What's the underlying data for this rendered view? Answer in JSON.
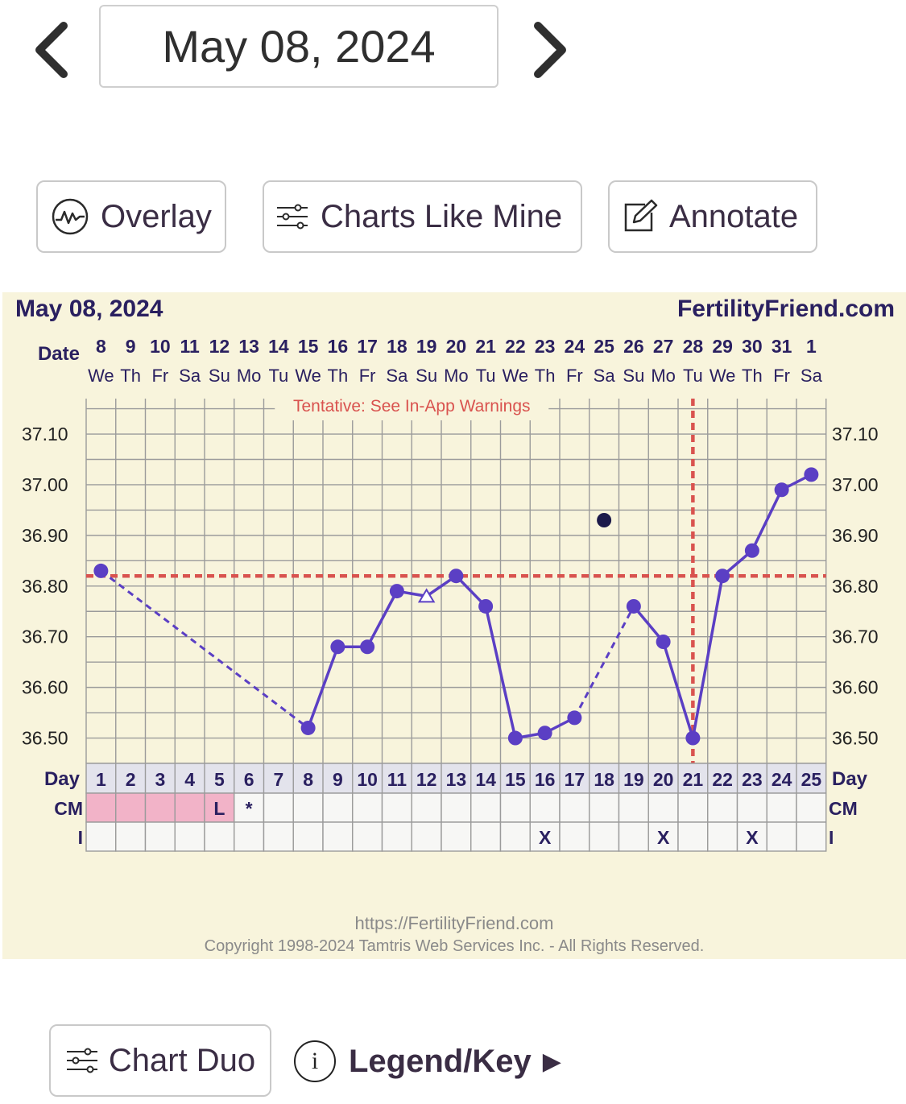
{
  "header": {
    "date": "May 08, 2024",
    "prev_icon": "chevron-left-icon",
    "next_icon": "chevron-right-icon"
  },
  "toolbar": {
    "overlay_label": "Overlay",
    "overlay_icon": "waveform-circle-icon",
    "charts_like_mine_label": "Charts Like Mine",
    "charts_like_mine_icon": "sliders-icon",
    "annotate_label": "Annotate",
    "annotate_icon": "edit-note-icon"
  },
  "chart_data": {
    "type": "line",
    "title": "May 08, 2024",
    "brand": "FertilityFriend.com",
    "warning": "Tentative: See In-App Warnings",
    "date_label": "Date",
    "dates": [
      "8",
      "9",
      "10",
      "11",
      "12",
      "13",
      "14",
      "15",
      "16",
      "17",
      "18",
      "19",
      "20",
      "21",
      "22",
      "23",
      "24",
      "25",
      "26",
      "27",
      "28",
      "29",
      "30",
      "31",
      "1"
    ],
    "weekdays": [
      "We",
      "Th",
      "Fr",
      "Sa",
      "Su",
      "Mo",
      "Tu",
      "We",
      "Th",
      "Fr",
      "Sa",
      "Su",
      "Mo",
      "Tu",
      "We",
      "Th",
      "Fr",
      "Sa",
      "Su",
      "Mo",
      "Tu",
      "We",
      "Th",
      "Fr",
      "Sa"
    ],
    "day_label": "Day",
    "days": [
      "1",
      "2",
      "3",
      "4",
      "5",
      "6",
      "7",
      "8",
      "9",
      "10",
      "11",
      "12",
      "13",
      "14",
      "15",
      "16",
      "17",
      "18",
      "19",
      "20",
      "21",
      "22",
      "23",
      "24",
      "25"
    ],
    "ylim": [
      36.45,
      37.17
    ],
    "yticks": [
      "37.10",
      "37.00",
      "36.90",
      "36.80",
      "36.70",
      "36.60",
      "36.50"
    ],
    "ytick_values": [
      37.1,
      37.0,
      36.9,
      36.8,
      36.7,
      36.6,
      36.5
    ],
    "series": [
      {
        "values": [
          36.83,
          null,
          null,
          null,
          null,
          null,
          null,
          36.52,
          36.68,
          36.68,
          36.79,
          36.78,
          36.82,
          36.76,
          36.5,
          36.51,
          36.54,
          36.93,
          36.76,
          36.69,
          36.5,
          36.82,
          36.87,
          36.99,
          37.02
        ]
      }
    ],
    "point_styles": {
      "open_triangle_day": 12,
      "excluded_dot_day": 18
    },
    "dashed_segments": [
      [
        1,
        8
      ],
      [
        17,
        19
      ]
    ],
    "coverline": 36.82,
    "ovulation_day": 21,
    "colors": {
      "line": "#5b3fc4",
      "coverline": "#d9534f",
      "excluded_point": "#1c1a4a",
      "cm_fill": "#f2b3c8",
      "panel_bg": "#f8f4dc",
      "grid": "#9b9b9b",
      "text": "#2a2060"
    },
    "cm_label": "CM",
    "cm_pink_days": [
      1,
      2,
      3,
      4,
      5
    ],
    "cm_marks": [
      {
        "day": 5,
        "text": "L"
      },
      {
        "day": 6,
        "text": "*"
      }
    ],
    "i_label": "I",
    "i_marks": [
      {
        "day": 16,
        "text": "X"
      },
      {
        "day": 20,
        "text": "X"
      },
      {
        "day": 23,
        "text": "X"
      }
    ],
    "footer_url": "https://FertilityFriend.com",
    "footer_copyright": "Copyright 1998-2024 Tamtris Web Services Inc. - All Rights Reserved."
  },
  "footer": {
    "chart_duo_label": "Chart Duo",
    "chart_duo_icon": "sliders-icon",
    "legend_label": "Legend/Key",
    "legend_info_icon": "info-icon",
    "legend_info_glyph": "i",
    "legend_arrow_glyph": "▶",
    "legend_arrow_icon": "play-arrow-icon"
  }
}
